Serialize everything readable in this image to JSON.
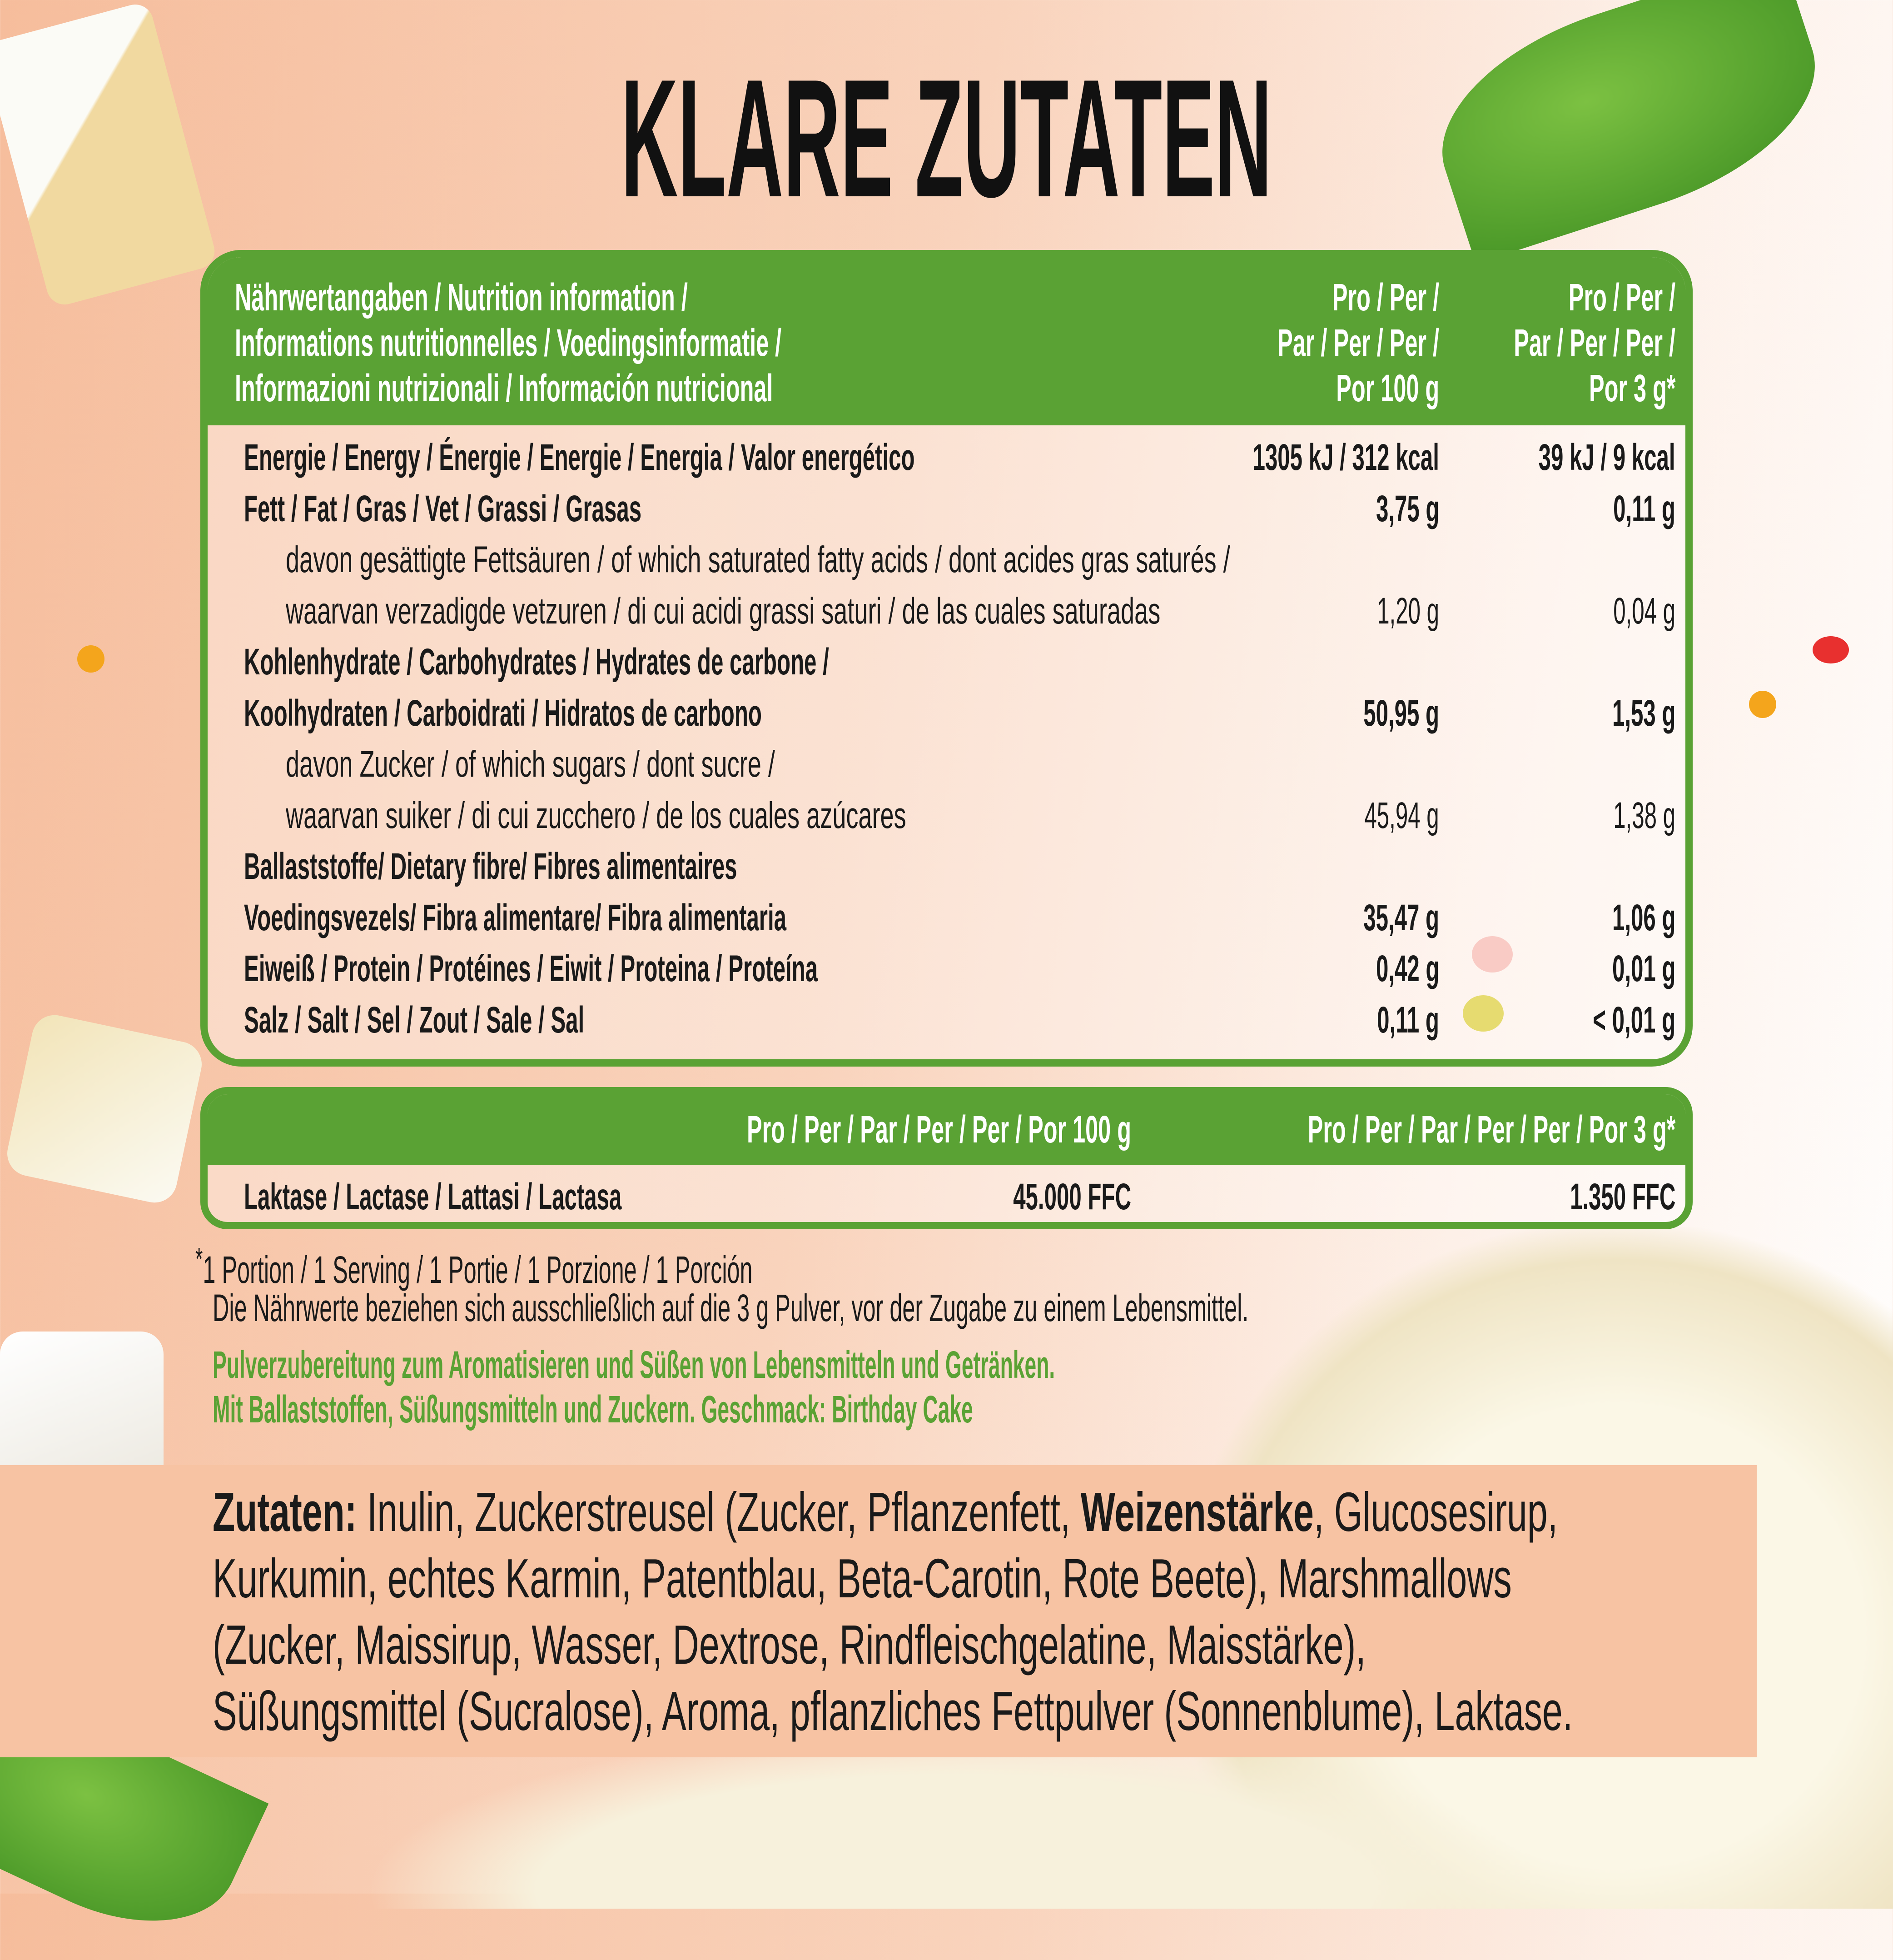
{
  "title": "KLARE ZUTATEN",
  "nutrition_table": {
    "header": {
      "label_lines": [
        "Nährwertangaben / Nutrition information /",
        "Informations nutritionnelles / Voedingsinformatie /",
        "Informazioni nutrizionali / Información nutricional"
      ],
      "col1_lines": [
        "Pro / Per /",
        "Par / Per / Per /",
        "Por 100 g"
      ],
      "col2_lines": [
        "Pro / Per /",
        "Par / Per / Per /",
        "Por 3 g*"
      ]
    },
    "rows": [
      {
        "label": "Energie / Energy / Énergie / Energie / Energia / Valor energético",
        "per100": "1305 kJ / 312 kcal",
        "per3": "39 kJ / 9 kcal",
        "style": "bold"
      },
      {
        "label": "Fett / Fat / Gras / Vet / Grassi / Grasas",
        "per100": "3,75 g",
        "per3": "0,11 g",
        "style": "bold"
      },
      {
        "label": "davon gesättigte Fettsäuren / of which saturated fatty acids / dont acides gras saturés /",
        "per100": "",
        "per3": "",
        "style": "indent"
      },
      {
        "label": "waarvan verzadigde vetzuren / di cui acidi grassi saturi / de las cuales saturadas",
        "per100": "1,20 g",
        "per3": "0,04 g",
        "style": "indent"
      },
      {
        "label": "Kohlenhydrate / Carbohydrates / Hydrates de carbone /",
        "per100": "",
        "per3": "",
        "style": "bold"
      },
      {
        "label": "Koolhydraten / Carboidrati / Hidratos de carbono",
        "per100": "50,95 g",
        "per3": "1,53 g",
        "style": "bold"
      },
      {
        "label": "davon Zucker / of which sugars / dont sucre /",
        "per100": "",
        "per3": "",
        "style": "indent"
      },
      {
        "label": "waarvan suiker / di cui zucchero / de los cuales azúcares",
        "per100": "45,94 g",
        "per3": "1,38 g",
        "style": "indent"
      },
      {
        "label": "Ballaststoffe/ Dietary fibre/ Fibres alimentaires",
        "per100": "",
        "per3": "",
        "style": "bold"
      },
      {
        "label": "Voedingsvezels/ Fibra alimentare/ Fibra alimentaria",
        "per100": "35,47 g",
        "per3": "1,06 g",
        "style": "bold"
      },
      {
        "label": "Eiweiß / Protein / Protéines / Eiwit / Proteina / Proteína",
        "per100": "0,42 g",
        "per3": "0,01 g",
        "style": "bold"
      },
      {
        "label": "Salz / Salt / Sel / Zout / Sale / Sal",
        "per100": "0,11 g",
        "per3": "< 0,01 g",
        "style": "bold"
      }
    ]
  },
  "lactase_table": {
    "col1_header": "Pro / Per / Par / Per / Per / Por 100 g",
    "col2_header": "Pro / Per / Par / Per / Per / Por 3 g*",
    "label": "Laktase / Lactase / Lattasi / Lactasa",
    "per100": "45.000 FFC",
    "per3": "1.350 FFC"
  },
  "footnotes": {
    "asterisk": "*",
    "portion": "1 Portion / 1 Serving / 1 Portie / 1 Porzione / 1 Porción",
    "note": "Die Nährwerte beziehen sich ausschließlich auf die 3 g Pulver, vor der Zugabe zu einem Lebensmittel.",
    "green_1": "Pulverzubereitung zum Aromatisieren und Süßen von Lebensmitteln und Getränken.",
    "green_2": "Mit Ballaststoffen, Süßungsmitteln und Zuckern. Geschmack: Birthday Cake"
  },
  "ingredients": {
    "label": "Zutaten:",
    "line1_a": " Inulin, Zuckerstreusel (Zucker, Pflanzenfett, ",
    "line1_bold": "Weizenstärke",
    "line1_b": ", Glucosesirup,",
    "line2": "Kurkumin, echtes Karmin, Patentblau, Beta-Carotin, Rote Beete), Marshmallows",
    "line3": "(Zucker, Maissirup, Wasser, Dextrose, Rindfleischgelatine, Maisstärke),",
    "line4": "Süßungsmittel (Sucralose), Aroma, pflanzliches Fettpulver (Sonnenblume), Laktase."
  },
  "colors": {
    "accent_green": "#5aa234",
    "background_peach": "#f6bd9c",
    "ingredients_box": "#f7c3a3"
  }
}
